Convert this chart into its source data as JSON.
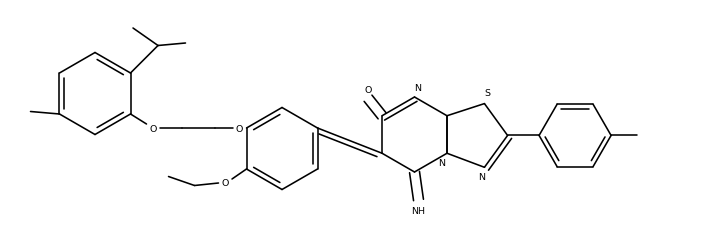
{
  "figsize": [
    7.14,
    2.32
  ],
  "dpi": 100,
  "bg": "#ffffff",
  "lc": "#000000",
  "lw": 1.15,
  "fs": 6.8,
  "xlim": [
    0,
    14.28
  ],
  "ylim": [
    0,
    4.64
  ]
}
